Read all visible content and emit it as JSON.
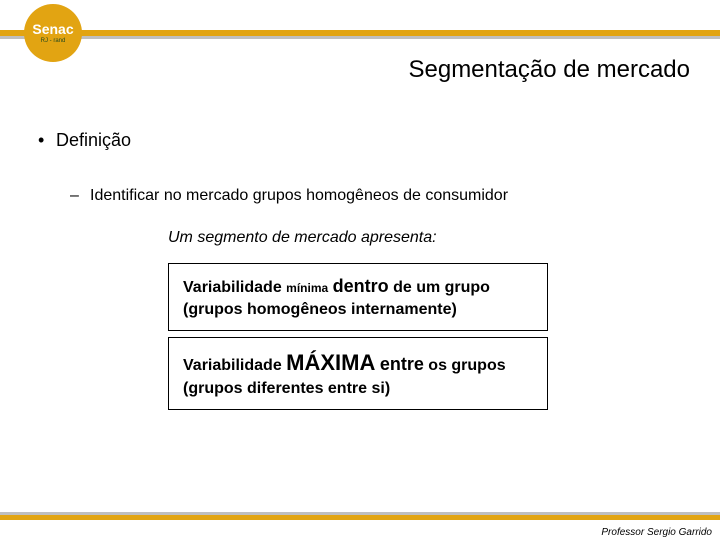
{
  "colors": {
    "gold": "#e2a412",
    "grey": "#bfbfbf",
    "logo_sub": "#244a1f"
  },
  "logo": {
    "main": "Senac",
    "sub": "RJ - rand"
  },
  "title": "Segmentação de mercado",
  "bullet1": "Definição",
  "bullet2": "Identificar no mercado grupos homogêneos de consumidor",
  "intro": "Um segmento de mercado apresenta:",
  "box1": {
    "prefix": "Variabilidade ",
    "minima": "mínima",
    "mid": " ",
    "dentro": "dentro",
    "suffix": " de um grupo",
    "paren": "(grupos homogêneos internamente)"
  },
  "box2": {
    "prefix": "Variabilidade ",
    "maxima": "MÁXIMA",
    "mid": " ",
    "entre": "entre",
    "suffix": " os grupos",
    "paren": "(grupos diferentes entre si)"
  },
  "credit": "Professor Sergio Garrido"
}
